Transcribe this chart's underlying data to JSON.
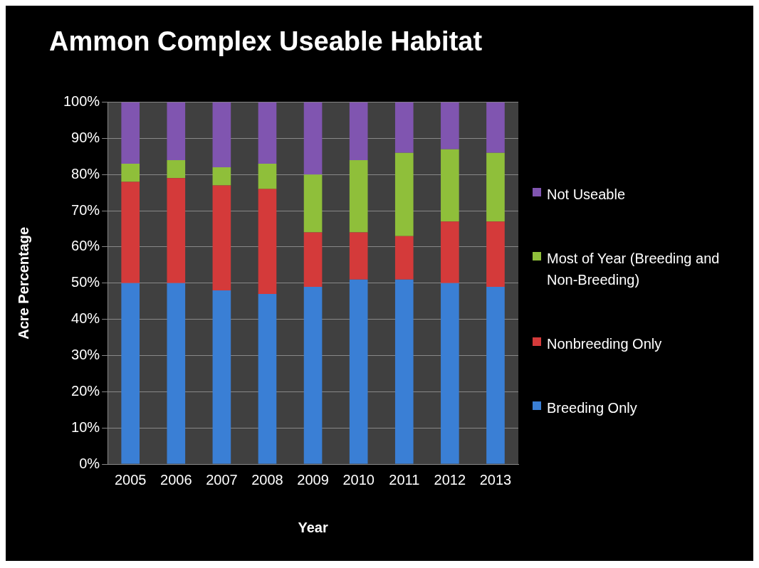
{
  "chart_data": {
    "type": "bar",
    "title": "Ammon Complex Useable Habitat",
    "xlabel": "Year",
    "ylabel": "Acre Percentage",
    "categories": [
      "2005",
      "2006",
      "2007",
      "2008",
      "2009",
      "2010",
      "2011",
      "2012",
      "2013"
    ],
    "stacked": true,
    "ylim": [
      0,
      100
    ],
    "yticks": [
      {
        "value": 0,
        "label": "0%"
      },
      {
        "value": 10,
        "label": "10%"
      },
      {
        "value": 20,
        "label": "20%"
      },
      {
        "value": 30,
        "label": "30%"
      },
      {
        "value": 40,
        "label": "40%"
      },
      {
        "value": 50,
        "label": "50%"
      },
      {
        "value": 60,
        "label": "60%"
      },
      {
        "value": 70,
        "label": "70%"
      },
      {
        "value": 80,
        "label": "80%"
      },
      {
        "value": 90,
        "label": "90%"
      },
      {
        "value": 100,
        "label": "100%"
      }
    ],
    "grid": "y",
    "legend": "right",
    "series": [
      {
        "name": "Breeding Only",
        "color": "#3a7fd5",
        "values": [
          50,
          50,
          48,
          47,
          49,
          51,
          51,
          50,
          49
        ]
      },
      {
        "name": "Nonbreeding Only",
        "color": "#d43a3a",
        "values": [
          28,
          29,
          29,
          29,
          15,
          13,
          12,
          17,
          18
        ]
      },
      {
        "name": "Most of Year (Breeding and Non-Breeding)",
        "color": "#8fbf3a",
        "values": [
          5,
          5,
          5,
          7,
          16,
          20,
          23,
          20,
          19
        ]
      },
      {
        "name": "Not Useable",
        "color": "#8055b0",
        "values": [
          17,
          16,
          18,
          17,
          20,
          16,
          14,
          13,
          14
        ]
      }
    ]
  }
}
